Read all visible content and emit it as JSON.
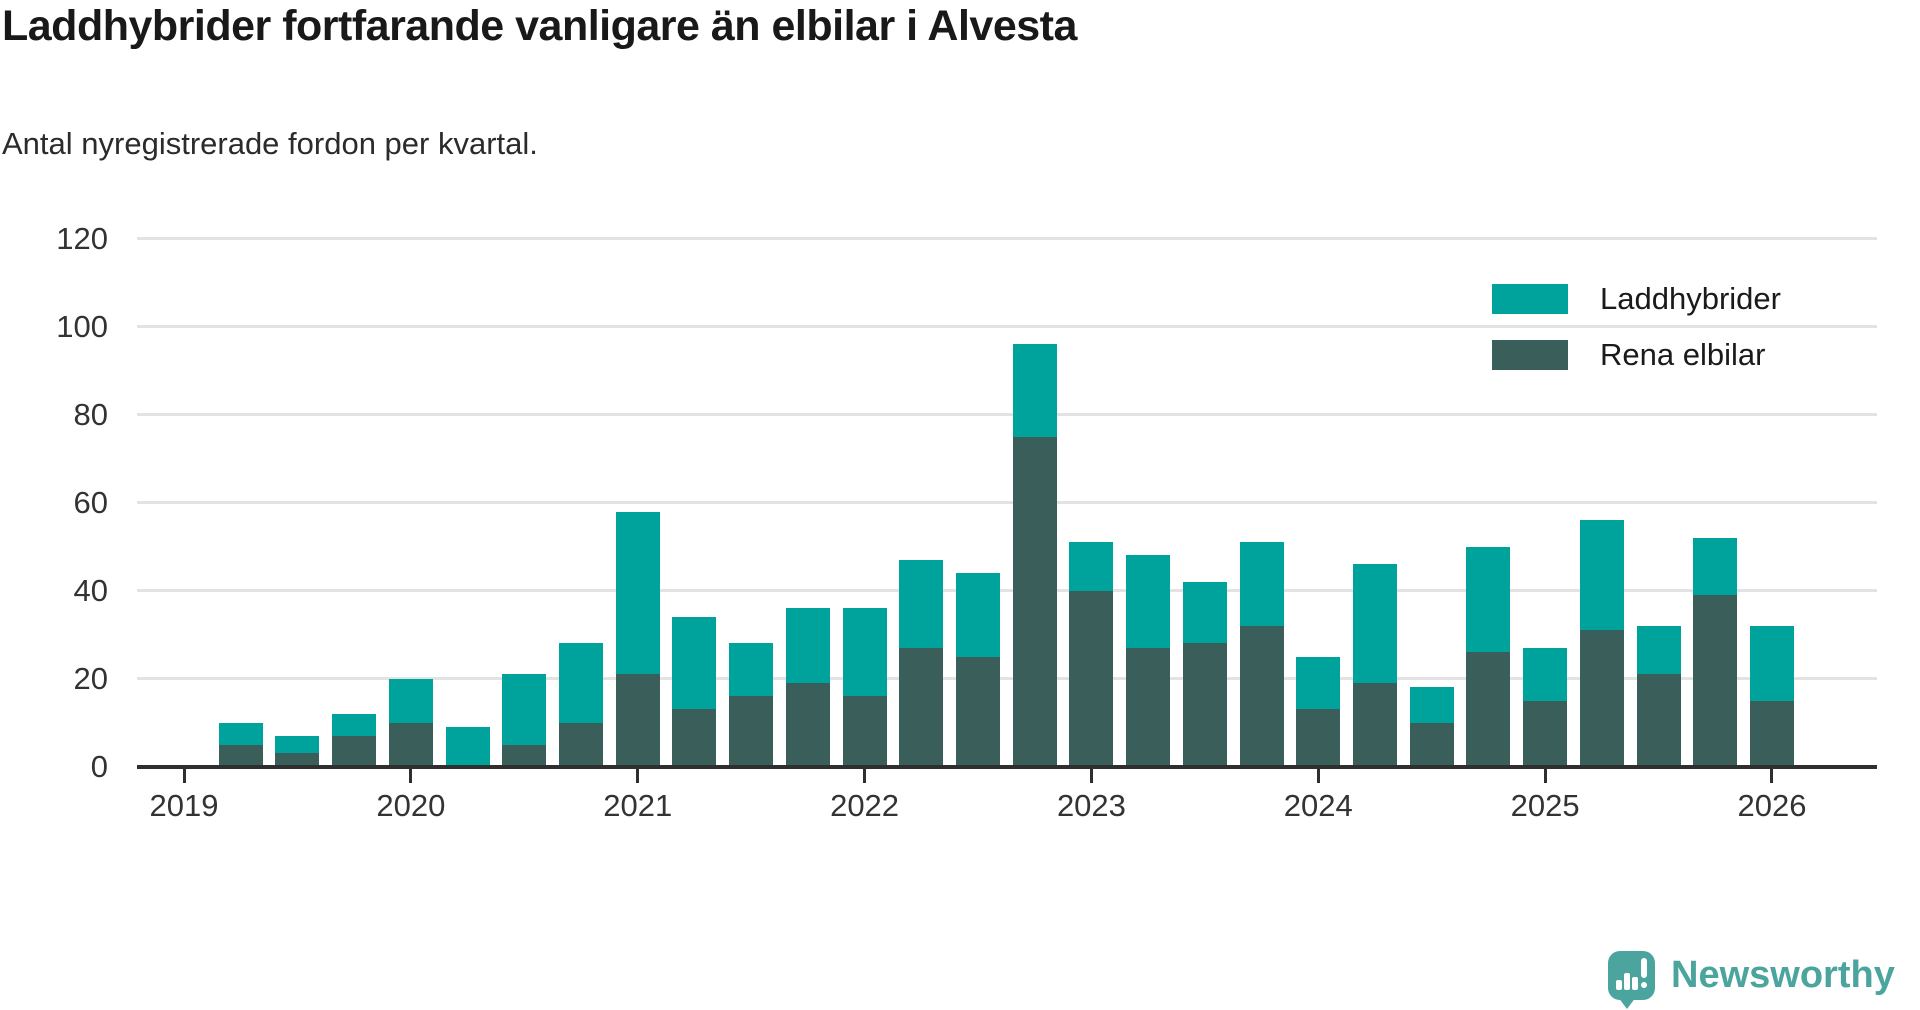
{
  "title": "Laddhybrider fortfarande vanligare än elbilar i Alvesta",
  "subtitle": "Antal nyregistrerade fordon per kvartal.",
  "legend": {
    "items": [
      {
        "label": "Laddhybrider",
        "color": "#00A39B"
      },
      {
        "label": "Rena elbilar",
        "color": "#3A5F5A"
      }
    ]
  },
  "logo": {
    "text": "Newsworthy",
    "color": "#4BA59E"
  },
  "colors": {
    "laddhybrider": "#00A39B",
    "rena_elbilar": "#3A5F5A",
    "axis": "#2f2f2f",
    "gridline": "#e3e3e3"
  },
  "chart_data": {
    "type": "bar",
    "stacked": true,
    "title": "Laddhybrider fortfarande vanligare än elbilar i Alvesta",
    "subtitle": "Antal nyregistrerade fordon per kvartal.",
    "xlabel": "",
    "ylabel": "",
    "ylim": [
      0,
      120
    ],
    "yticks": [
      0,
      20,
      40,
      60,
      80,
      100,
      120
    ],
    "grid": true,
    "legend_position": "top-right",
    "year_ticks": [
      2019,
      2020,
      2021,
      2022,
      2023,
      2024,
      2025,
      2026
    ],
    "categories": [
      "2019-Q2",
      "2019-Q3",
      "2019-Q4",
      "2020-Q1",
      "2020-Q2",
      "2020-Q3",
      "2020-Q4",
      "2021-Q1",
      "2021-Q2",
      "2021-Q3",
      "2021-Q4",
      "2022-Q1",
      "2022-Q2",
      "2022-Q3",
      "2022-Q4",
      "2023-Q1",
      "2023-Q2",
      "2023-Q3",
      "2023-Q4",
      "2024-Q1",
      "2024-Q2",
      "2024-Q3",
      "2024-Q4",
      "2025-Q1",
      "2025-Q2",
      "2025-Q3",
      "2025-Q4",
      "2026-Q1"
    ],
    "series": [
      {
        "name": "Laddhybrider",
        "color": "#00A39B",
        "values": [
          5,
          4,
          5,
          10,
          9,
          16,
          18,
          37,
          21,
          12,
          17,
          20,
          20,
          19,
          21,
          11,
          21,
          14,
          19,
          12,
          27,
          8,
          24,
          12,
          25,
          11,
          13,
          17
        ]
      },
      {
        "name": "Rena elbilar",
        "color": "#3A5F5A",
        "values": [
          5,
          3,
          7,
          10,
          0,
          5,
          10,
          21,
          13,
          16,
          19,
          16,
          27,
          25,
          75,
          40,
          27,
          28,
          32,
          13,
          19,
          10,
          26,
          15,
          31,
          21,
          39,
          15
        ]
      }
    ],
    "totals": [
      10,
      7,
      12,
      20,
      9,
      21,
      28,
      58,
      34,
      28,
      36,
      36,
      47,
      44,
      96,
      51,
      48,
      42,
      51,
      25,
      46,
      18,
      50,
      27,
      56,
      32,
      52,
      32
    ]
  }
}
